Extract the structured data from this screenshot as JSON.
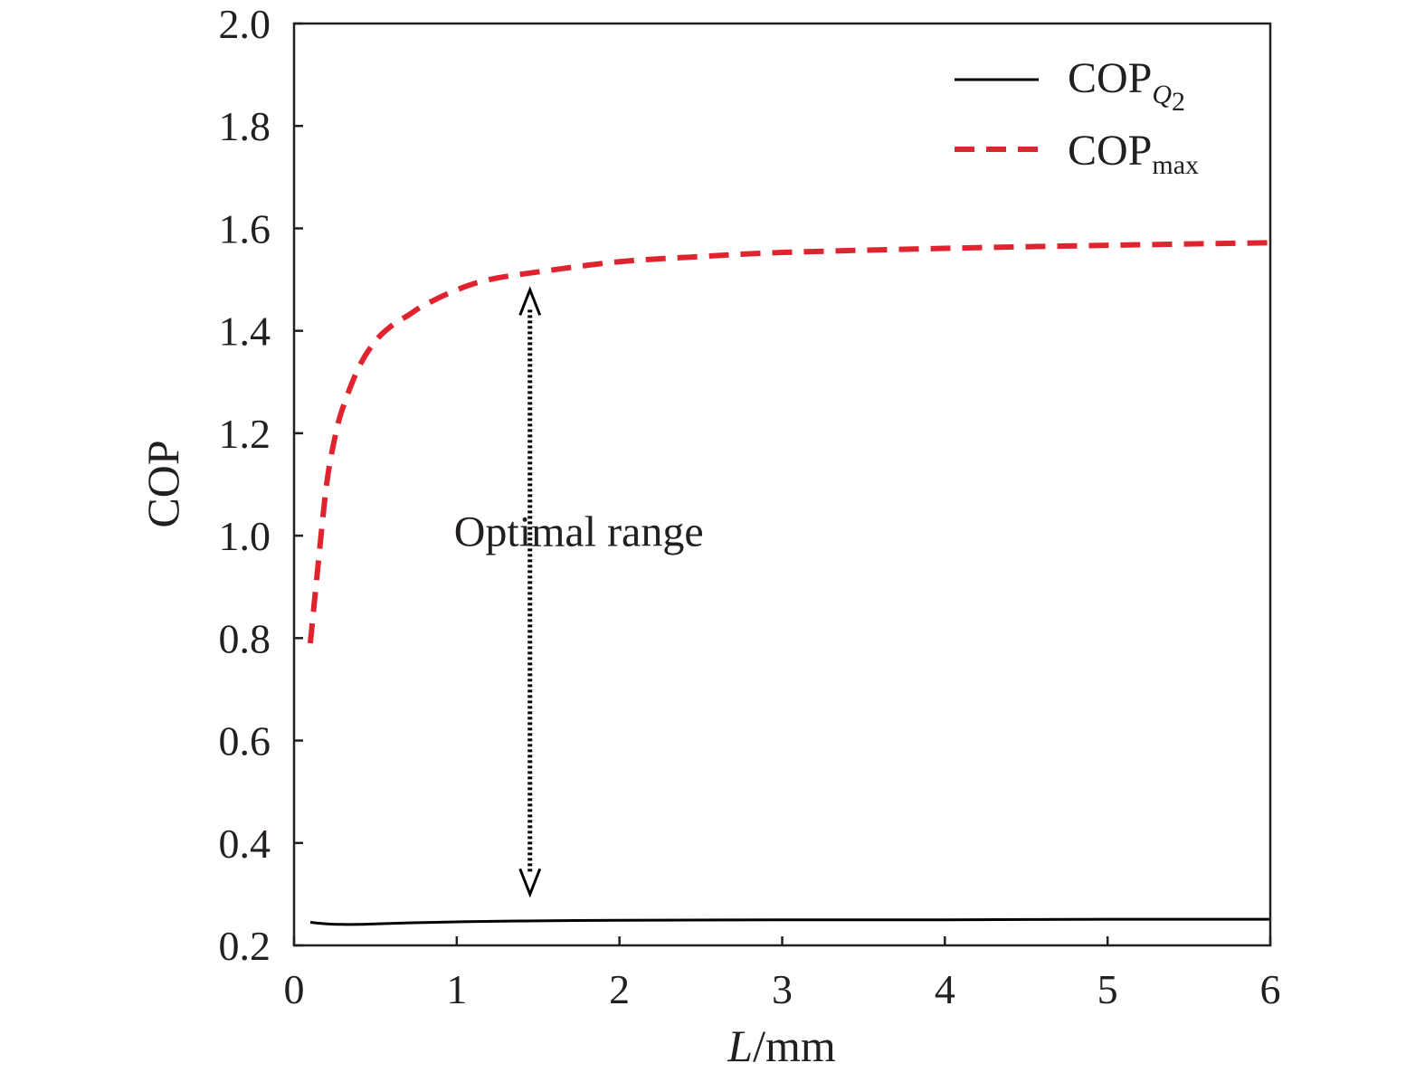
{
  "chart_data": {
    "type": "line",
    "title": "",
    "xlabel": "L/mm",
    "xlabel_italic_part": "L",
    "xlabel_rest": "/mm",
    "ylabel": "COP",
    "xlim": [
      0,
      6
    ],
    "ylim": [
      0.2,
      2.0
    ],
    "xticks": [
      0,
      1,
      2,
      3,
      4,
      5,
      6
    ],
    "xtick_labels": [
      "0",
      "1",
      "2",
      "3",
      "4",
      "5",
      "6"
    ],
    "yticks": [
      0.2,
      0.4,
      0.6,
      0.8,
      1.0,
      1.2,
      1.4,
      1.6,
      1.8,
      2.0
    ],
    "ytick_labels": [
      "0.2",
      "0.4",
      "0.6",
      "0.8",
      "1.0",
      "1.2",
      "1.4",
      "1.6",
      "1.8",
      "2.0"
    ],
    "grid": false,
    "legend_position": "top-right",
    "series": [
      {
        "name": "COPQ2",
        "legend_main": "COP",
        "legend_sub": "Q",
        "legend_subsub": "2",
        "style": "solid",
        "color": "#000000",
        "x": [
          0.1,
          0.2,
          0.3,
          0.4,
          0.5,
          0.7,
          1.0,
          1.5,
          2.0,
          3.0,
          4.0,
          5.0,
          6.0
        ],
        "y": [
          0.245,
          0.242,
          0.241,
          0.241,
          0.242,
          0.244,
          0.246,
          0.248,
          0.249,
          0.25,
          0.25,
          0.251,
          0.251
        ]
      },
      {
        "name": "COPmax",
        "legend_main": "COP",
        "legend_sub": "max",
        "style": "dashed",
        "color": "#e0242f",
        "x": [
          0.1,
          0.15,
          0.2,
          0.25,
          0.3,
          0.4,
          0.5,
          0.6,
          0.7,
          0.8,
          1.0,
          1.2,
          1.5,
          2.0,
          2.5,
          3.0,
          4.0,
          5.0,
          6.0
        ],
        "y": [
          0.79,
          0.95,
          1.1,
          1.19,
          1.25,
          1.33,
          1.38,
          1.41,
          1.43,
          1.45,
          1.48,
          1.5,
          1.515,
          1.535,
          1.545,
          1.553,
          1.561,
          1.567,
          1.572
        ]
      }
    ],
    "annotations": [
      {
        "text": "Optimal range",
        "type": "double-arrow",
        "x": 1.45,
        "y_from": 0.3,
        "y_to": 1.48,
        "label_x": 1.75,
        "label_y": 0.98
      }
    ]
  }
}
